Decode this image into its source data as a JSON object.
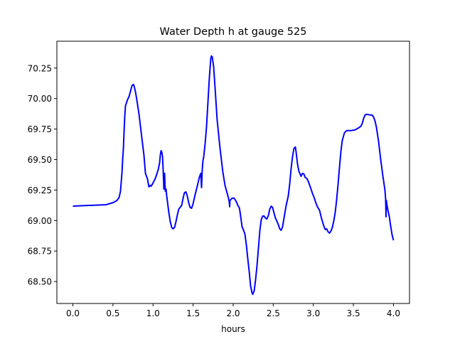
{
  "chart_data": {
    "type": "line",
    "title": "Water Depth h at gauge 525",
    "xlabel": "hours",
    "ylabel": "",
    "xlim": [
      -0.2,
      4.2
    ],
    "ylim": [
      68.32,
      70.47
    ],
    "grid": false,
    "xticks": [
      0.0,
      0.5,
      1.0,
      1.5,
      2.0,
      2.5,
      3.0,
      3.5,
      4.0
    ],
    "xtick_labels": [
      "0.0",
      "0.5",
      "1.0",
      "1.5",
      "2.0",
      "2.5",
      "3.0",
      "3.5",
      "4.0"
    ],
    "yticks": [
      68.5,
      68.75,
      69.0,
      69.25,
      69.5,
      69.75,
      70.0,
      70.25
    ],
    "ytick_labels": [
      "68.50",
      "68.75",
      "69.00",
      "69.25",
      "69.50",
      "69.75",
      "70.00",
      "70.25"
    ],
    "series": [
      {
        "name": "h",
        "color": "#0000ff",
        "x": [
          0,
          0.417,
          0.506,
          0.55,
          0.576,
          0.594,
          0.603,
          0.612,
          0.621,
          0.63,
          0.639,
          0.647,
          0.656,
          0.683,
          0.701,
          0.718,
          0.736,
          0.754,
          0.763,
          0.78,
          0.798,
          0.825,
          0.86,
          0.887,
          0.905,
          0.931,
          0.949,
          0.967,
          0.976,
          0.993,
          1.029,
          1.064,
          1.082,
          1.091,
          1.1,
          1.109,
          1.118,
          1.126,
          1.135,
          1.144,
          1.153,
          1.162,
          1.171,
          1.197,
          1.215,
          1.233,
          1.251,
          1.268,
          1.286,
          1.304,
          1.322,
          1.357,
          1.375,
          1.392,
          1.41,
          1.428,
          1.446,
          1.463,
          1.481,
          1.499,
          1.525,
          1.552,
          1.579,
          1.596,
          1.605,
          1.614,
          1.623,
          1.632,
          1.65,
          1.667,
          1.685,
          1.703,
          1.721,
          1.729,
          1.738,
          1.756,
          1.774,
          1.8,
          1.836,
          1.871,
          1.898,
          1.925,
          1.942,
          1.951,
          1.956,
          1.96,
          1.987,
          2.013,
          2.04,
          2.058,
          2.075,
          2.084,
          2.111,
          2.129,
          2.146,
          2.164,
          2.182,
          2.2,
          2.217,
          2.235,
          2.244,
          2.262,
          2.279,
          2.297,
          2.315,
          2.333,
          2.35,
          2.368,
          2.386,
          2.404,
          2.421,
          2.439,
          2.457,
          2.475,
          2.492,
          2.51,
          2.528,
          2.545,
          2.563,
          2.581,
          2.599,
          2.616,
          2.634,
          2.661,
          2.687,
          2.705,
          2.723,
          2.741,
          2.758,
          2.776,
          2.785,
          2.803,
          2.82,
          2.847,
          2.865,
          2.882,
          2.9,
          2.918,
          2.936,
          2.962,
          2.989,
          3.016,
          3.033,
          3.051,
          3.078,
          3.104,
          3.131,
          3.149,
          3.166,
          3.184,
          3.202,
          3.22,
          3.237,
          3.255,
          3.273,
          3.29,
          3.308,
          3.326,
          3.344,
          3.361,
          3.388,
          3.415,
          3.468,
          3.521,
          3.565,
          3.592,
          3.61,
          3.627,
          3.645,
          3.663,
          3.716,
          3.734,
          3.752,
          3.769,
          3.787,
          3.814,
          3.84,
          3.867,
          3.894,
          3.902,
          3.907,
          3.911,
          3.92,
          3.929,
          3.947,
          3.965,
          3.982,
          4.0
        ],
        "y": [
          69.118,
          69.13,
          69.148,
          69.165,
          69.188,
          69.241,
          69.317,
          69.387,
          69.503,
          69.591,
          69.737,
          69.853,
          69.941,
          69.993,
          70.017,
          70.058,
          70.104,
          70.116,
          70.104,
          70.058,
          69.988,
          69.871,
          69.678,
          69.533,
          69.387,
          69.34,
          69.276,
          69.288,
          69.282,
          69.299,
          69.346,
          69.416,
          69.474,
          69.538,
          69.573,
          69.561,
          69.526,
          69.416,
          69.258,
          69.387,
          69.241,
          69.258,
          69.2,
          69.066,
          68.99,
          68.943,
          68.932,
          68.943,
          68.99,
          69.048,
          69.095,
          69.124,
          69.183,
          69.229,
          69.235,
          69.2,
          69.142,
          69.107,
          69.101,
          69.136,
          69.212,
          69.282,
          69.358,
          69.387,
          69.27,
          69.416,
          69.492,
          69.521,
          69.632,
          69.766,
          69.97,
          70.174,
          70.332,
          70.349,
          70.343,
          70.262,
          70.087,
          69.824,
          69.591,
          69.398,
          69.288,
          69.223,
          69.183,
          69.153,
          69.113,
          69.165,
          69.183,
          69.183,
          69.153,
          69.124,
          69.107,
          69.078,
          68.949,
          68.92,
          68.891,
          68.803,
          68.687,
          68.582,
          68.465,
          68.407,
          68.395,
          68.424,
          68.512,
          68.628,
          68.774,
          68.92,
          69.007,
          69.037,
          69.037,
          69.019,
          69.013,
          69.042,
          69.095,
          69.118,
          69.107,
          69.06,
          69.019,
          68.996,
          68.967,
          68.932,
          68.92,
          68.949,
          69.019,
          69.124,
          69.2,
          69.299,
          69.428,
          69.527,
          69.591,
          69.603,
          69.562,
          69.462,
          69.404,
          69.363,
          69.387,
          69.381,
          69.352,
          69.346,
          69.323,
          69.276,
          69.223,
          69.177,
          69.142,
          69.113,
          69.083,
          69.013,
          68.955,
          68.926,
          68.932,
          68.908,
          68.897,
          68.914,
          68.943,
          68.996,
          69.066,
          69.165,
          69.293,
          69.433,
          69.567,
          69.655,
          69.719,
          69.737,
          69.737,
          69.743,
          69.76,
          69.772,
          69.795,
          69.836,
          69.865,
          69.871,
          69.865,
          69.865,
          69.848,
          69.818,
          69.766,
          69.649,
          69.503,
          69.369,
          69.247,
          69.177,
          69.031,
          69.165,
          69.124,
          69.089,
          69.037,
          68.955,
          68.885,
          68.838
        ]
      }
    ]
  }
}
